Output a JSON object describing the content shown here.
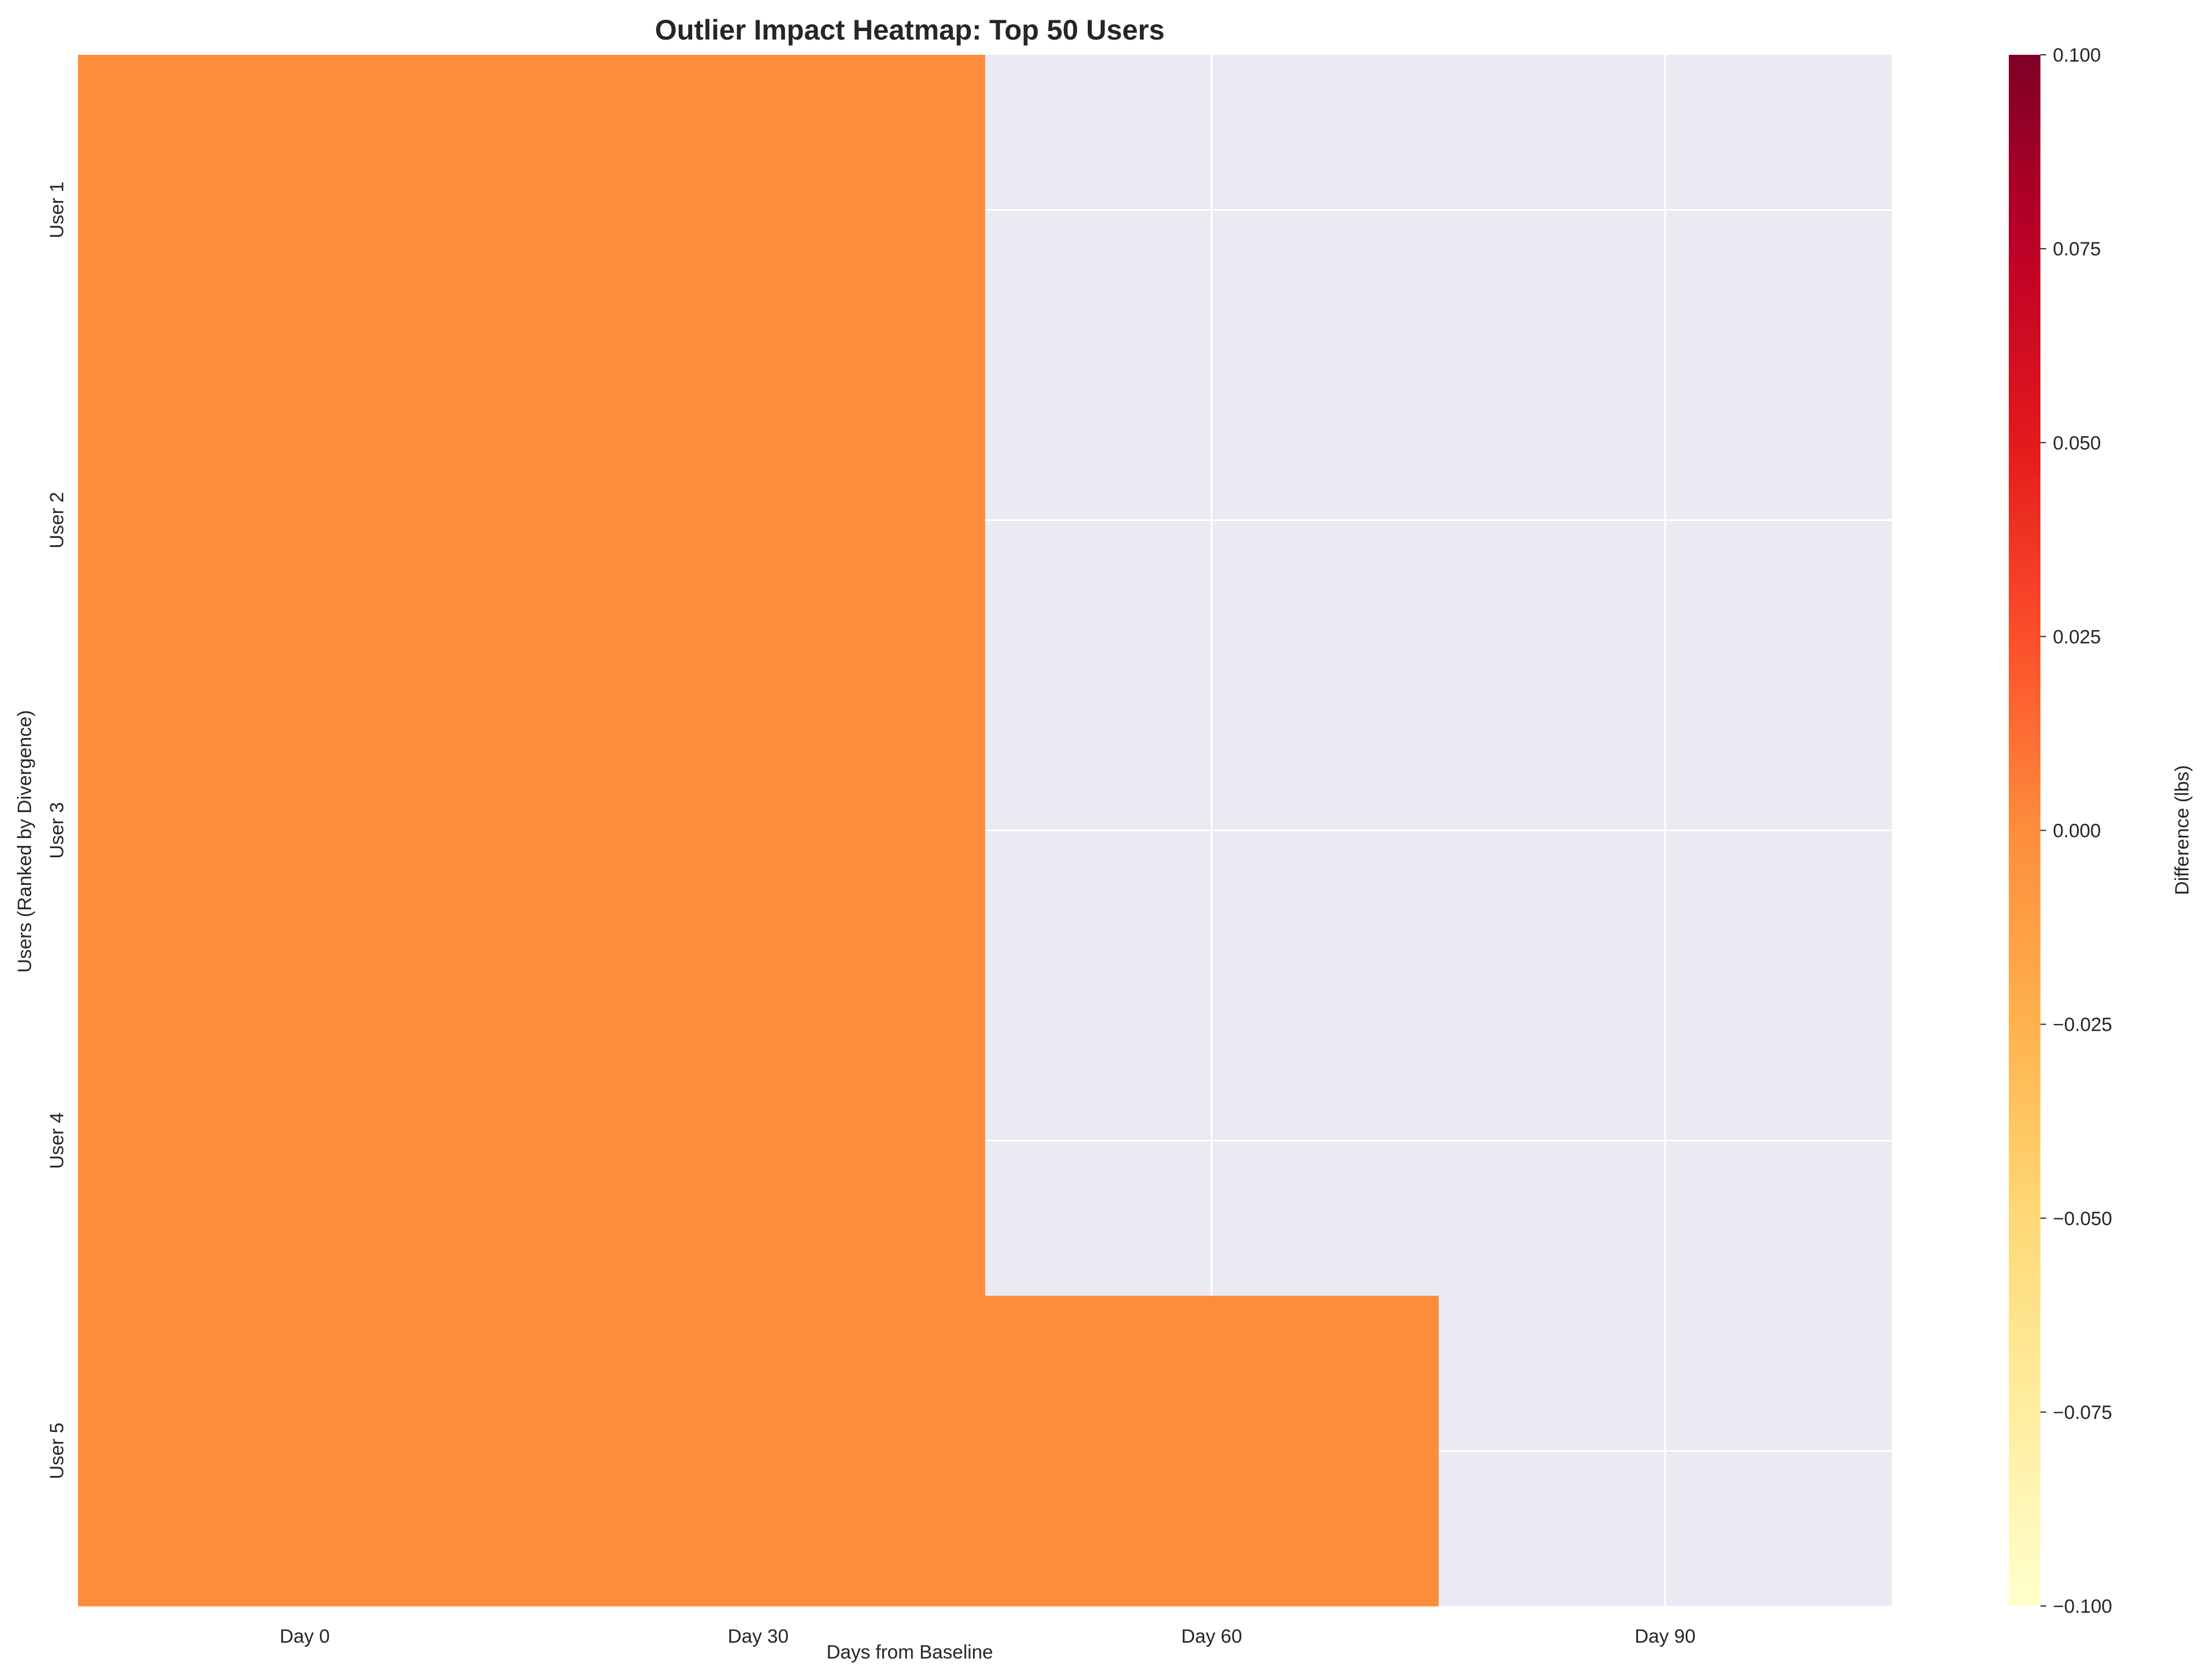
{
  "chart_data": {
    "type": "heatmap",
    "title": "Outlier Impact Heatmap: Top 50 Users",
    "xlabel": "Days from Baseline",
    "ylabel": "Users (Ranked by Divergence)",
    "x_categories": [
      "Day 0",
      "Day 30",
      "Day 60",
      "Day 90"
    ],
    "y_categories": [
      "User 1",
      "User 2",
      "User 3",
      "User 4",
      "User 5"
    ],
    "values": [
      [
        0,
        0,
        null,
        null
      ],
      [
        0,
        0,
        null,
        null
      ],
      [
        0,
        0,
        null,
        null
      ],
      [
        0,
        0,
        null,
        null
      ],
      [
        0,
        0,
        0,
        null
      ]
    ],
    "colorbar": {
      "label": "Difference (lbs)",
      "colormap": "YlOrRd",
      "range": [
        -0.1,
        0.1
      ],
      "ticks": [
        "0.100",
        "0.075",
        "0.050",
        "0.025",
        "0.000",
        "−0.025",
        "−0.050",
        "−0.075",
        "−0.100"
      ],
      "colors": [
        "#ffffcc",
        "#ffeda0",
        "#fed976",
        "#feb24c",
        "#fd8d3c",
        "#fc4e2a",
        "#e31a1c",
        "#bd0026",
        "#800026"
      ]
    },
    "missing_color": "#eaeaf2",
    "grid": true
  }
}
